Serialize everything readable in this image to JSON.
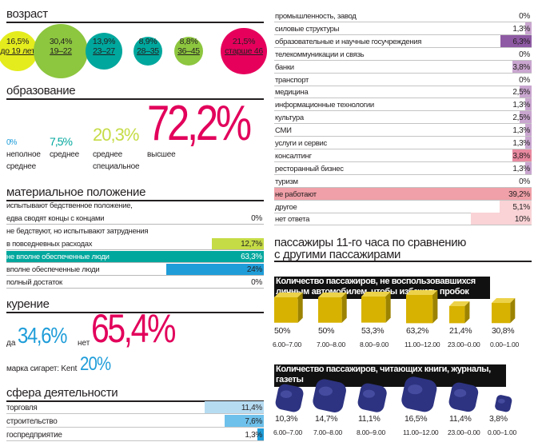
{
  "colors": {
    "age": [
      "#e4ec1e",
      "#8dc63f",
      "#00a79d",
      "#00a79d",
      "#8dc63f",
      "#e6005c"
    ],
    "accent_pink": "#e2005b",
    "accent_blue": "#1f9dd9",
    "accent_green": "#8dc63f",
    "teal": "#00a79d",
    "yellow_green": "#c6dc46",
    "light_blue": "#b6dcf2",
    "mid_blue": "#6ec1eb",
    "purple": "#8e5aa3",
    "light_purple": "#c9a6cf",
    "salmon": "#f0a0a8",
    "light_pink": "#f9d3d6",
    "pink_mid": "#e889a0",
    "gold": "#d8b400",
    "navy": "#2d3380"
  },
  "age": {
    "title": "возраст",
    "groups": [
      {
        "value": "16,5%",
        "range": "до 19 лет",
        "pct": 16.5
      },
      {
        "value": "30,4%",
        "range": "19–22",
        "pct": 30.4
      },
      {
        "value": "13,9%",
        "range": "23–27",
        "pct": 13.9
      },
      {
        "value": "8,9%",
        "range": "28–35",
        "pct": 8.9
      },
      {
        "value": "8,8%",
        "range": "36–45",
        "pct": 8.8
      },
      {
        "value": "21,5%",
        "range": "старше 46",
        "pct": 21.5
      }
    ]
  },
  "education": {
    "title": "образование",
    "items": [
      {
        "value": "0%",
        "label1": "неполное",
        "label2": "среднее"
      },
      {
        "value": "7,5%",
        "label1": "среднее",
        "label2": ""
      },
      {
        "value": "20,3%",
        "label1": "среднее",
        "label2": "специальное"
      },
      {
        "value": "72,2%",
        "label1": "высшее",
        "label2": ""
      }
    ]
  },
  "wealth": {
    "title": "материальное положение",
    "rows": [
      {
        "label_top": "испытывают бедственное положение,",
        "label": "едва сводят концы с концами",
        "value": "0%",
        "pct": 0
      },
      {
        "label_top": "не бедствуют, но испытывают затруднения",
        "label": "в повседневных расходах",
        "value": "12,7%",
        "pct": 12.7
      },
      {
        "label_top": "",
        "label": "не вполне обеспеченные люди",
        "value": "63,3%",
        "pct": 63.3
      },
      {
        "label_top": "",
        "label": "вполне обеспеченные люди",
        "value": "24%",
        "pct": 24
      },
      {
        "label_top": "",
        "label": "полный достаток",
        "value": "0%",
        "pct": 0
      }
    ]
  },
  "smoking": {
    "title": "курение",
    "yes_label": "да",
    "yes_value": "34,6%",
    "no_label": "нет",
    "no_value": "65,4%",
    "brand_label": "марка сигарет: Kent",
    "brand_value": "20%"
  },
  "sphere": {
    "title": "сфера деятельности",
    "rows_left": [
      {
        "label": "торговля",
        "value": "11,4%",
        "pct": 11.4
      },
      {
        "label": "строительство",
        "value": "7,6%",
        "pct": 7.6
      },
      {
        "label": "госпредприятие",
        "value": "1,3%",
        "pct": 1.3
      }
    ],
    "rows_right": [
      {
        "label": "промышленность, завод",
        "value": "0%",
        "pct": 0
      },
      {
        "label": "силовые структуры",
        "value": "1,3%",
        "pct": 1.3
      },
      {
        "label": "образовательные и научные госучреждения",
        "value": "6,3%",
        "pct": 6.3
      },
      {
        "label": "телекоммуникации и связь",
        "value": "0%",
        "pct": 0
      },
      {
        "label": "банки",
        "value": "3,8%",
        "pct": 3.8
      },
      {
        "label": "транспорт",
        "value": "0%",
        "pct": 0
      },
      {
        "label": "медицина",
        "value": "2,5%",
        "pct": 2.5
      },
      {
        "label": "информационные технологии",
        "value": "1,3%",
        "pct": 1.3
      },
      {
        "label": "культура",
        "value": "2,5%",
        "pct": 2.5
      },
      {
        "label": "СМИ",
        "value": "1,3%",
        "pct": 1.3
      },
      {
        "label": "услуги и сервис",
        "value": "1,3%",
        "pct": 1.3
      },
      {
        "label": "консалтинг",
        "value": "3,8%",
        "pct": 3.8
      },
      {
        "label": "ресторанный бизнес",
        "value": "1,3%",
        "pct": 1.3
      },
      {
        "label": "туризм",
        "value": "0%",
        "pct": 0
      },
      {
        "label": "не работают",
        "value": "39,2%",
        "pct": 39.2
      },
      {
        "label": "другое",
        "value": "5,1%",
        "pct": 5.1
      },
      {
        "label": "нет ответа",
        "value": "10%",
        "pct": 10
      }
    ]
  },
  "passengers": {
    "title_line1": "пассажиры 11-го часа по сравнению",
    "title_line2": "с другими пассажирами",
    "car_title": "Количество пассажиров, не воспользовавшихся личным автомобилем, чтобы избежать пробок",
    "car": [
      {
        "value": "50%",
        "time": "6.00–7.00",
        "pct": 50
      },
      {
        "value": "50%",
        "time": "7.00–8.00",
        "pct": 50
      },
      {
        "value": "53,3%",
        "time": "8.00–9.00",
        "pct": 53.3
      },
      {
        "value": "63,2%",
        "time": "11.00–12.00",
        "pct": 63.2
      },
      {
        "value": "21,4%",
        "time": "23.00–0.00",
        "pct": 21.4
      },
      {
        "value": "30,8%",
        "time": "0.00–1.00",
        "pct": 30.8
      }
    ],
    "books_title": "Количество пассажиров, читающих книги, журналы, газеты",
    "books": [
      {
        "value": "10,3%",
        "time": "6.00–7.00",
        "pct": 10.3
      },
      {
        "value": "14,7%",
        "time": "7.00–8.00",
        "pct": 14.7
      },
      {
        "value": "11,1%",
        "time": "8.00–9.00",
        "pct": 11.1
      },
      {
        "value": "16,5%",
        "time": "11.00–12.00",
        "pct": 16.5
      },
      {
        "value": "11,4%",
        "time": "23.00–0.00",
        "pct": 11.4
      },
      {
        "value": "3,8%",
        "time": "0.00–1.00",
        "pct": 3.8
      }
    ]
  },
  "chart_data": [
    {
      "type": "bar",
      "categories": [
        "до 19 лет",
        "19–22",
        "23–27",
        "28–35",
        "36–45",
        "старше 46"
      ],
      "values": [
        16.5,
        30.4,
        13.9,
        8.9,
        8.8,
        21.5
      ],
      "title": "возраст"
    },
    {
      "type": "bar",
      "categories": [
        "неполное среднее",
        "среднее",
        "среднее специальное",
        "высшее"
      ],
      "values": [
        0,
        7.5,
        20.3,
        72.2
      ],
      "title": "образование"
    },
    {
      "type": "bar",
      "categories": [
        "испытывают бедственное положение, едва сводят концы с концами",
        "не бедствуют, но испытывают затруднения в повседневных расходах",
        "не вполне обеспеченные люди",
        "вполне обеспеченные люди",
        "полный достаток"
      ],
      "values": [
        0,
        12.7,
        63.3,
        24,
        0
      ],
      "title": "материальное положение"
    },
    {
      "type": "bar",
      "categories": [
        "да",
        "нет"
      ],
      "values": [
        34.6,
        65.4
      ],
      "title": "курение"
    },
    {
      "type": "bar",
      "categories": [
        "торговля",
        "строительство",
        "госпредприятие",
        "промышленность, завод",
        "силовые структуры",
        "образовательные и научные госучреждения",
        "телекоммуникации и связь",
        "банки",
        "транспорт",
        "медицина",
        "информационные технологии",
        "культура",
        "СМИ",
        "услуги и сервис",
        "консалтинг",
        "ресторанный бизнес",
        "туризм",
        "не работают",
        "другое",
        "нет ответа"
      ],
      "values": [
        11.4,
        7.6,
        1.3,
        0,
        1.3,
        6.3,
        0,
        3.8,
        0,
        2.5,
        1.3,
        2.5,
        1.3,
        1.3,
        3.8,
        1.3,
        0,
        39.2,
        5.1,
        10
      ],
      "title": "сфера деятельности"
    },
    {
      "type": "bar",
      "categories": [
        "6.00–7.00",
        "7.00–8.00",
        "8.00–9.00",
        "11.00–12.00",
        "23.00–0.00",
        "0.00–1.00"
      ],
      "values": [
        50,
        50,
        53.3,
        63.2,
        21.4,
        30.8
      ],
      "title": "Количество пассажиров, не воспользовавшихся личным автомобилем, чтобы избежать пробок"
    },
    {
      "type": "bar",
      "categories": [
        "6.00–7.00",
        "7.00–8.00",
        "8.00–9.00",
        "11.00–12.00",
        "23.00–0.00",
        "0.00–1.00"
      ],
      "values": [
        10.3,
        14.7,
        11.1,
        16.5,
        11.4,
        3.8
      ],
      "title": "Количество пассажиров, читающих книги, журналы, газеты"
    }
  ]
}
